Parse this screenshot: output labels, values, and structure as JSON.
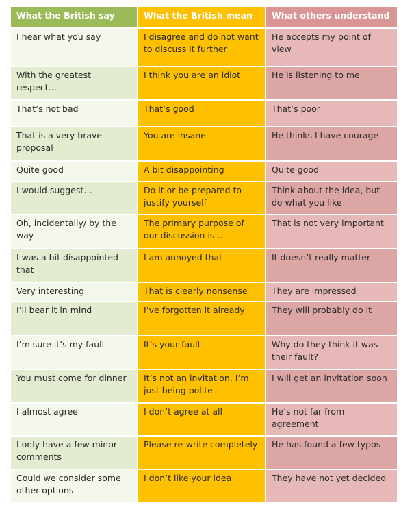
{
  "table": {
    "header": [
      "What the British say",
      "What the British mean",
      "What others understand"
    ],
    "rows": [
      [
        "I hear what you say",
        "I disagree and do not want to discuss it further",
        "He accepts my point of view"
      ],
      [
        "With the greatest respect…",
        "I think you are an idiot",
        "He is listening to me"
      ],
      [
        "That’s not bad",
        "That’s good",
        "That’s poor"
      ],
      [
        "That is a very brave proposal",
        "You are insane",
        "He thinks I have courage"
      ],
      [
        "Quite good",
        "A bit disappointing",
        "Quite good"
      ],
      [
        "I would suggest…",
        "Do it or be prepared to justify yourself",
        "Think about the idea, but do what you like"
      ],
      [
        "Oh, incidentally/ by the way",
        "The primary purpose of our discussion is…",
        "That is not very important"
      ],
      [
        "I was a bit disappointed that",
        "I am annoyed that",
        "It doesn’t really matter"
      ],
      [
        "Very interesting",
        "That is clearly nonsense",
        "They are impressed"
      ],
      [
        "I’ll bear it in mind",
        "I’ve forgotten it already",
        "They will probably do it"
      ],
      [
        "I’m sure it’s my fault",
        "It’s your fault",
        "Why do they think it was their fault?"
      ],
      [
        "You must come for dinner",
        "It’s not an invitation, I’m just being polite",
        "I will get an invitation soon"
      ],
      [
        "I almost agree",
        "I don’t agree at all",
        "He’s not far from agreement"
      ],
      [
        "I only have a few minor comments",
        "Please re-write completely",
        "He has found a few typos"
      ],
      [
        "Could we consider some other options",
        "I don’t like your idea",
        "They have not yet decided"
      ]
    ]
  }
}
